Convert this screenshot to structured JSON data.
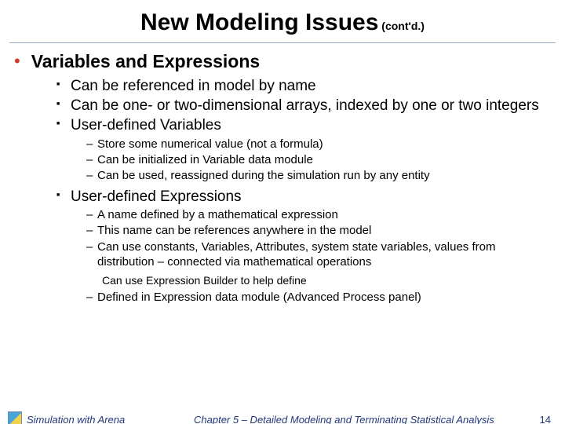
{
  "title": {
    "main": "New  Modeling Issues",
    "cont": " (cont'd.)"
  },
  "heading": "Variables and Expressions",
  "l1": [
    "Can be referenced in model by name",
    "Can be one- or two-dimensional arrays, indexed by one or two integers",
    "User-defined Variables"
  ],
  "l2a": [
    "Store some numerical value (not a formula)",
    "Can be initialized in Variable data module",
    "Can be used, reassigned during the simulation run by any entity"
  ],
  "l1b": "User-defined Expressions",
  "l2b": [
    "A name defined by a mathematical expression",
    "This name can be references anywhere in the model",
    "Can use constants, Variables, Attributes, system state variables, values from distribution – connected via mathematical operations"
  ],
  "l3": "Can use Expression Builder to help define",
  "l2c": "Defined in Expression data module (Advanced Process panel)",
  "footer": {
    "left": "Simulation with Arena",
    "center": "Chapter 5 – Detailed Modeling and Terminating Statistical Analysis",
    "page": "14"
  },
  "colors": {
    "accent_bullet": "#d03a2b",
    "divider": "#9aa7cf",
    "footer_text": "#20377a",
    "background": "#ffffff",
    "text": "#000000"
  },
  "fontsize": {
    "title": 30,
    "cont": 14,
    "heading": 23,
    "l1": 19,
    "l2": 15,
    "l3": 14,
    "footer": 13
  }
}
